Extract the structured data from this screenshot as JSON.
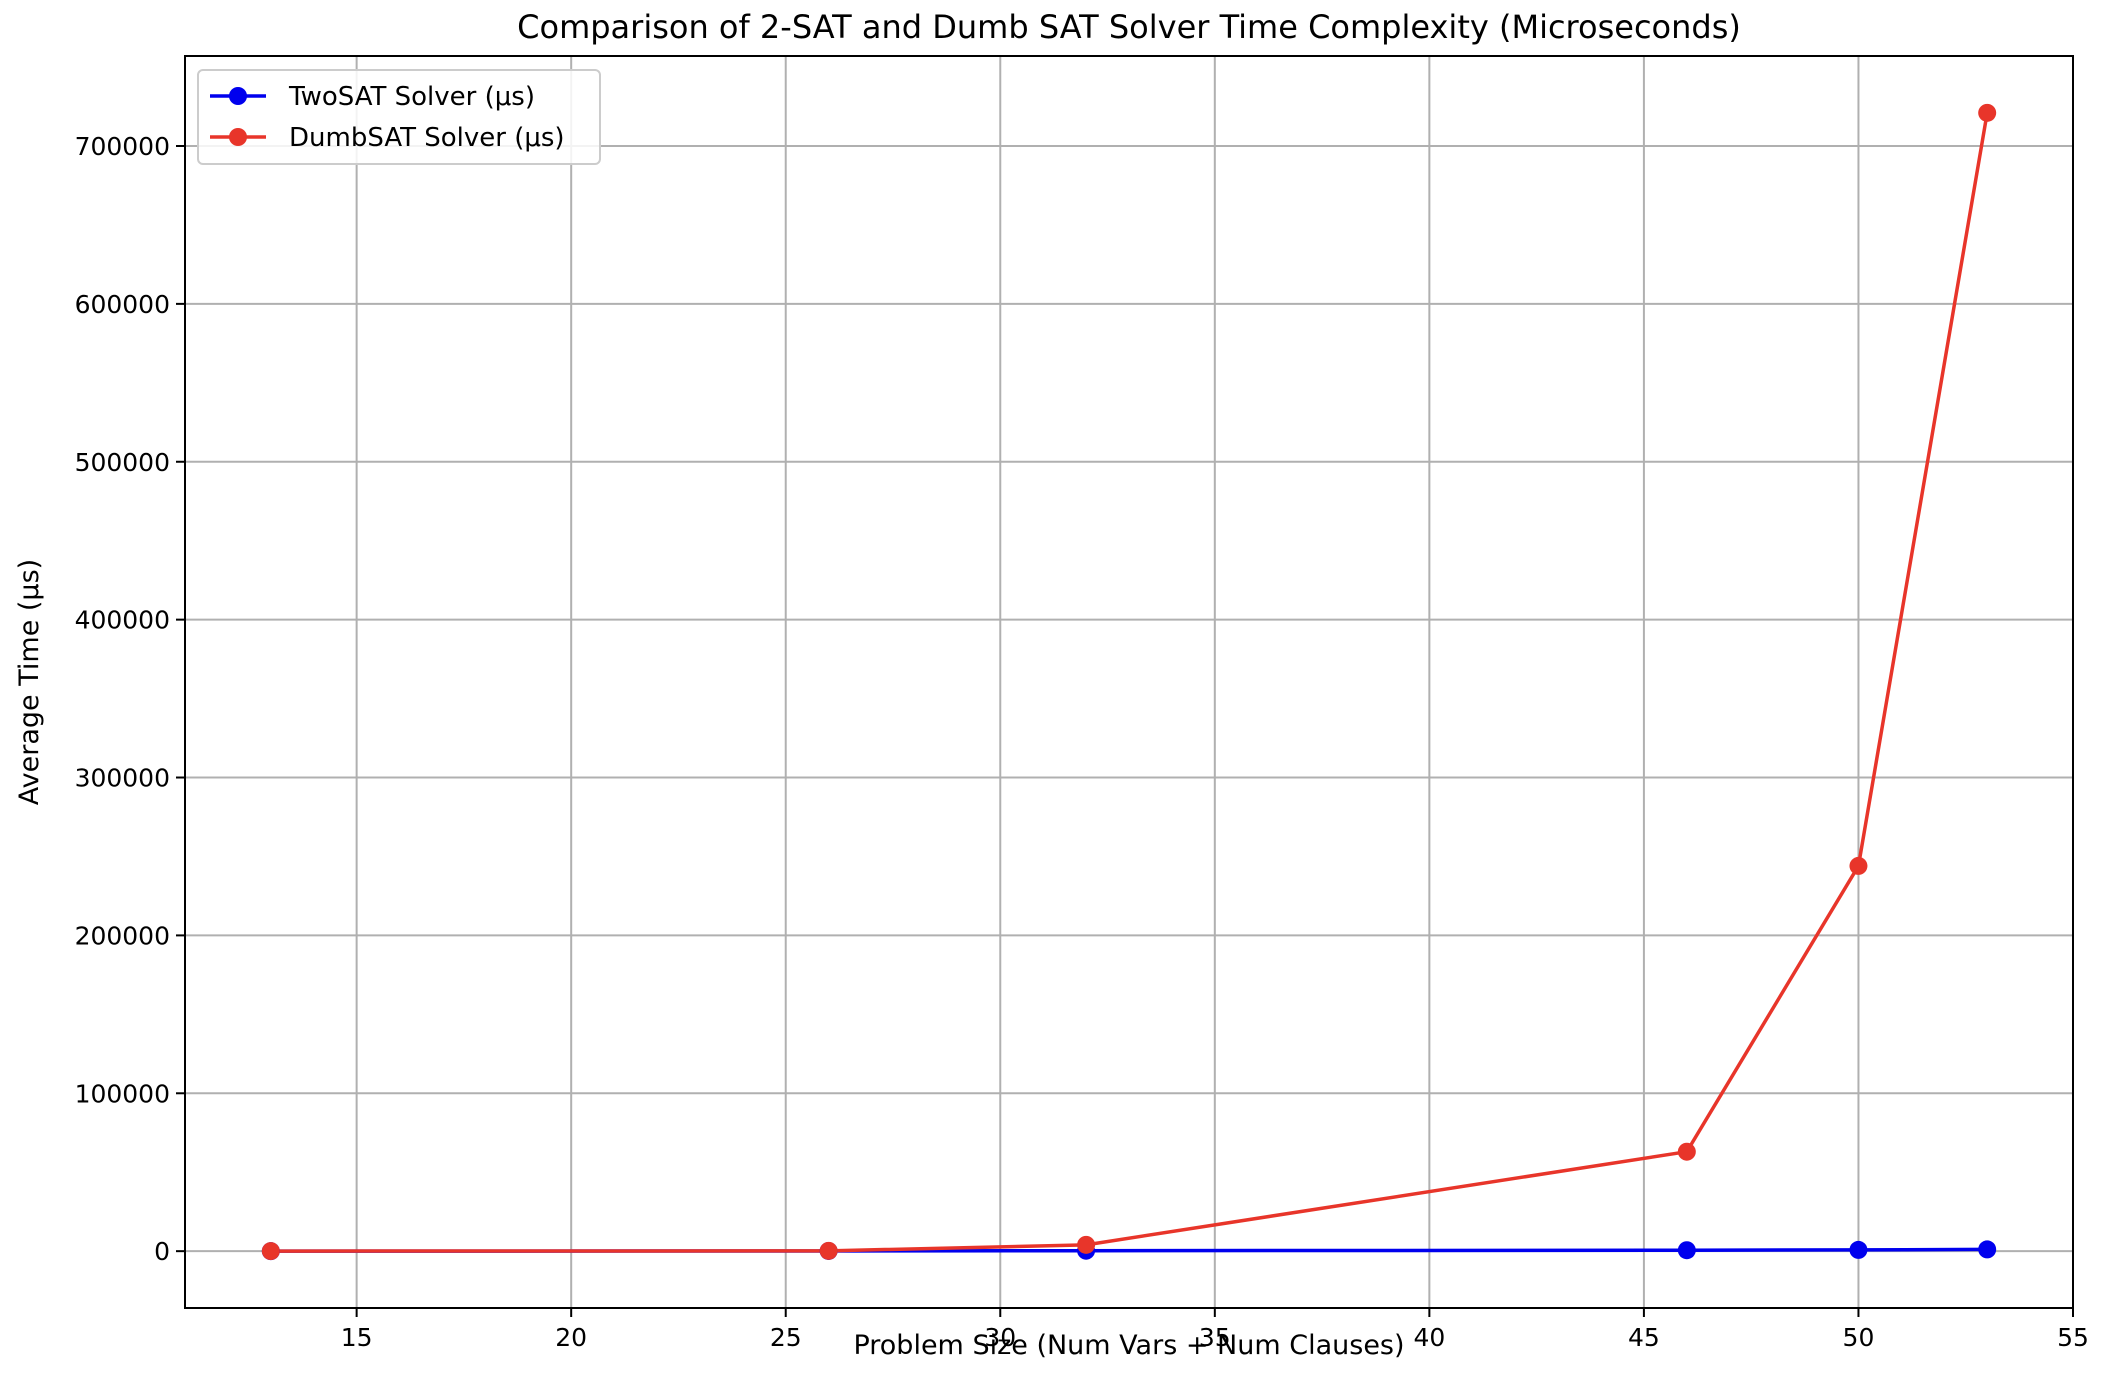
{
  "chart_data": {
    "type": "line",
    "title": "Comparison of 2-SAT and Dumb SAT Solver Time Complexity (Microseconds)",
    "xlabel": "Problem Size (Num Vars + Num Clauses)",
    "ylabel": "Average Time (μs)",
    "xlim": [
      11,
      55
    ],
    "ylim": [
      -36000,
      757000
    ],
    "xticks": [
      15,
      20,
      25,
      30,
      35,
      40,
      45,
      50,
      55
    ],
    "yticks": [
      0,
      100000,
      200000,
      300000,
      400000,
      500000,
      600000,
      700000
    ],
    "grid": true,
    "legend_position": "top-left",
    "x": [
      13,
      26,
      32,
      46,
      50,
      53
    ],
    "series": [
      {
        "name": "TwoSAT Solver (μs)",
        "color": "#0000ee",
        "marker": "circle",
        "values": [
          20,
          120,
          300,
          600,
          800,
          1100
        ]
      },
      {
        "name": "DumbSAT Solver (μs)",
        "color": "#e8352a",
        "marker": "circle",
        "values": [
          30,
          200,
          4000,
          63000,
          244000,
          721000
        ]
      }
    ]
  }
}
